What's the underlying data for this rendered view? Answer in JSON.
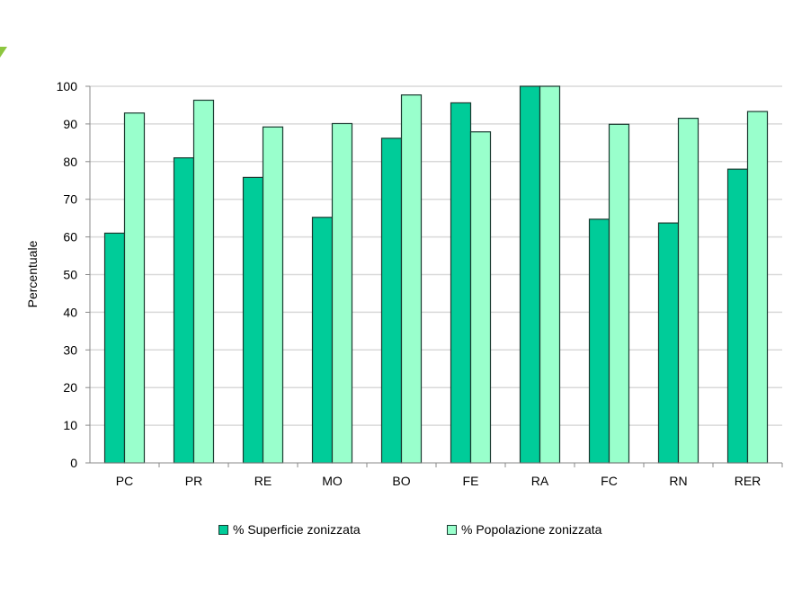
{
  "chart_data": {
    "type": "bar",
    "title": "",
    "xlabel": "",
    "ylabel": "Percentuale",
    "ylim": [
      0,
      100
    ],
    "yticks": [
      0,
      10,
      20,
      30,
      40,
      50,
      60,
      70,
      80,
      90,
      100
    ],
    "grid": true,
    "legend_position": "bottom",
    "categories": [
      "PC",
      "PR",
      "RE",
      "MO",
      "BO",
      "FE",
      "RA",
      "FC",
      "RN",
      "RER"
    ],
    "series": [
      {
        "name": "% Superficie zonizzata",
        "color": "#00CC99",
        "values": [
          61.0,
          81.0,
          75.8,
          65.2,
          86.2,
          95.6,
          100,
          64.7,
          63.7,
          78.0
        ]
      },
      {
        "name": "% Popolazione zonizzata",
        "color": "#99FFCC",
        "values": [
          92.9,
          96.3,
          89.2,
          90.1,
          97.7,
          87.9,
          100,
          89.9,
          91.5,
          93.3
        ]
      }
    ]
  }
}
